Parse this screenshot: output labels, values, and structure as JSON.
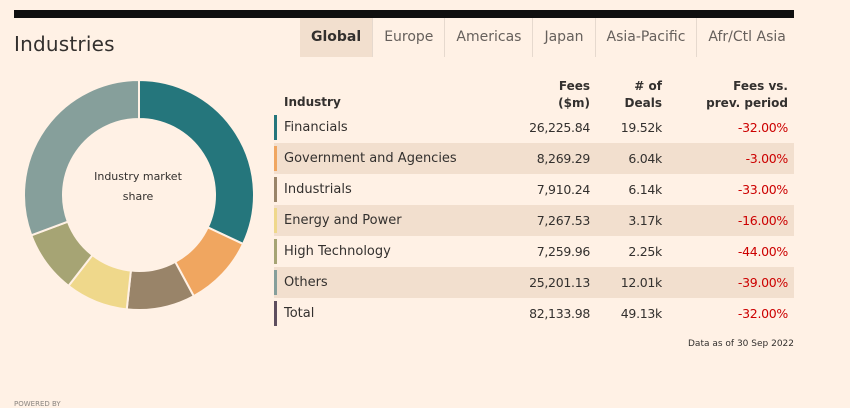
{
  "section_title": "Industries",
  "tabs": [
    {
      "label": "Global",
      "active": true
    },
    {
      "label": "Europe",
      "active": false
    },
    {
      "label": "Americas",
      "active": false
    },
    {
      "label": "Japan",
      "active": false
    },
    {
      "label": "Asia-Pacific",
      "active": false
    },
    {
      "label": "Afr/Ctl Asia",
      "active": false
    }
  ],
  "donut": {
    "label": "Industry market share",
    "slices": [
      {
        "name": "Financials",
        "share": 32.0,
        "color": "#25767c"
      },
      {
        "name": "Government and Agencies",
        "share": 10.1,
        "color": "#f0a660"
      },
      {
        "name": "Industrials",
        "share": 9.6,
        "color": "#998469"
      },
      {
        "name": "Energy and Power",
        "share": 8.8,
        "color": "#efd88b"
      },
      {
        "name": "High Technology",
        "share": 8.8,
        "color": "#a6a474"
      },
      {
        "name": "Others",
        "share": 30.7,
        "color": "#869f9b"
      }
    ]
  },
  "table": {
    "headers": {
      "industry": "Industry",
      "fees": "Fees\n($m)",
      "deals": "# of\nDeals",
      "change": "Fees vs.\nprev. period"
    },
    "rows": [
      {
        "industry": "Financials",
        "fees": "26,225.84",
        "deals": "19.52k",
        "change": "-32.00%",
        "color": "#25767c"
      },
      {
        "industry": "Government and Agencies",
        "fees": "8,269.29",
        "deals": "6.04k",
        "change": "-3.00%",
        "color": "#f0a660"
      },
      {
        "industry": "Industrials",
        "fees": "7,910.24",
        "deals": "6.14k",
        "change": "-33.00%",
        "color": "#998469"
      },
      {
        "industry": "Energy and Power",
        "fees": "7,267.53",
        "deals": "3.17k",
        "change": "-16.00%",
        "color": "#efd88b"
      },
      {
        "industry": "High Technology",
        "fees": "7,259.96",
        "deals": "2.25k",
        "change": "-44.00%",
        "color": "#a6a474"
      },
      {
        "industry": "Others",
        "fees": "25,201.13",
        "deals": "12.01k",
        "change": "-39.00%",
        "color": "#869f9b"
      },
      {
        "industry": "Total",
        "fees": "82,133.98",
        "deals": "49.13k",
        "change": "-32.00%",
        "color": "#5e4e5e"
      }
    ]
  },
  "note": "Data as of 30 Sep 2022",
  "footer": "POWERED BY"
}
